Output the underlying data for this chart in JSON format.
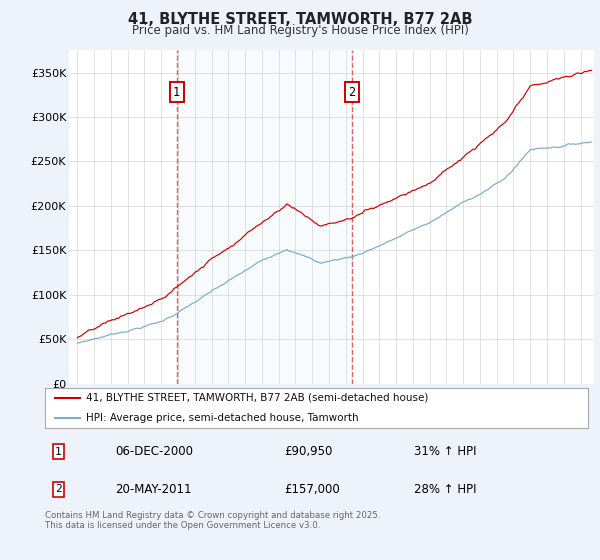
{
  "title": "41, BLYTHE STREET, TAMWORTH, B77 2AB",
  "subtitle": "Price paid vs. HM Land Registry's House Price Index (HPI)",
  "legend_line1": "41, BLYTHE STREET, TAMWORTH, B77 2AB (semi-detached house)",
  "legend_line2": "HPI: Average price, semi-detached house, Tamworth",
  "annotation1": {
    "label": "1",
    "date": "06-DEC-2000",
    "price": "£90,950",
    "hpi": "31% ↑ HPI",
    "year": 2000.92
  },
  "annotation2": {
    "label": "2",
    "date": "20-MAY-2011",
    "price": "£157,000",
    "hpi": "28% ↑ HPI",
    "year": 2011.38
  },
  "footer": "Contains HM Land Registry data © Crown copyright and database right 2025.\nThis data is licensed under the Open Government Licence v3.0.",
  "red_color": "#cc0000",
  "blue_color": "#7aabcf",
  "background_color": "#eef2fa",
  "plot_bg": "#ffffff",
  "ylim": [
    0,
    375000
  ],
  "xlim_start": 1994.5,
  "xlim_end": 2025.8,
  "yticks": [
    0,
    50000,
    100000,
    150000,
    200000,
    250000,
    300000,
    350000
  ],
  "ylabels": [
    "£0",
    "£50K",
    "£100K",
    "£150K",
    "£200K",
    "£250K",
    "£300K",
    "£350K"
  ]
}
